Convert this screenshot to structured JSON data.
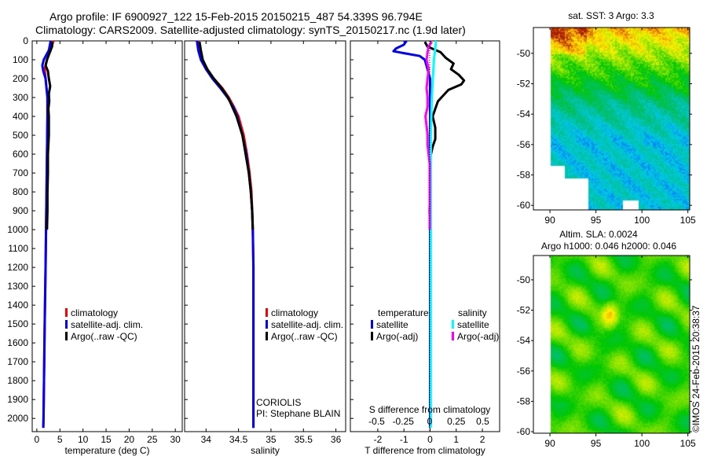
{
  "title": {
    "line1": "Argo profile: IF 6900927_122 15-Feb-2015 20150215_487 54.339S 96.794E",
    "line2": "Climatology: CARS2009. Satellite-adjusted climatology: synTS_20150217.nc (1.9d later)"
  },
  "credit": "©IMOS 24-Feb-2015 20:38:37",
  "chart_data": [
    {
      "type": "line",
      "id": "temperature",
      "xlabel": "temperature (deg C)",
      "ylabel": "",
      "xlim": [
        -1,
        31.5
      ],
      "ylim": [
        2070,
        0
      ],
      "xticks": [
        0,
        5,
        10,
        15,
        20,
        25,
        30
      ],
      "yticks": [
        0,
        100,
        200,
        300,
        400,
        500,
        600,
        700,
        800,
        900,
        1000,
        1100,
        1200,
        1300,
        1400,
        1500,
        1600,
        1700,
        1800,
        1900,
        2000
      ],
      "legend": [
        "climatology",
        "satellite-adj. clim.",
        "Argo(..raw -QC)"
      ],
      "series": [
        {
          "name": "climatology",
          "color": "#ff0000",
          "depth": [
            0,
            50,
            100,
            150,
            200,
            300,
            400,
            600,
            800,
            1000,
            1200,
            1500,
            1800,
            2000,
            2050
          ],
          "values": [
            3.6,
            3.0,
            2.2,
            1.7,
            1.9,
            2.3,
            2.3,
            2.2,
            2.1,
            2.0,
            1.9,
            1.7,
            1.55,
            1.45,
            1.4
          ]
        },
        {
          "name": "satellite-adj. clim.",
          "color": "#0000ff",
          "depth": [
            0,
            50,
            100,
            130,
            160,
            200,
            300,
            400,
            600,
            800,
            1000,
            1200,
            1500,
            1800,
            2000,
            2050
          ],
          "values": [
            3.0,
            2.6,
            1.5,
            1.2,
            1.4,
            1.9,
            2.3,
            2.3,
            2.2,
            2.1,
            2.0,
            1.9,
            1.7,
            1.55,
            1.45,
            1.4
          ]
        },
        {
          "name": "Argo(..raw -QC)",
          "color": "#000000",
          "depth": [
            5,
            30,
            60,
            100,
            130,
            160,
            200,
            240,
            280,
            320,
            360,
            400,
            500,
            600,
            700,
            800,
            900,
            1000
          ],
          "values": [
            3.3,
            3.3,
            2.8,
            2.2,
            1.9,
            2.4,
            2.6,
            2.9,
            2.6,
            2.7,
            2.5,
            2.6,
            2.6,
            2.4,
            2.4,
            2.3,
            2.3,
            2.2
          ]
        }
      ],
      "annotations": []
    },
    {
      "type": "line",
      "id": "salinity",
      "xlabel": "salinity",
      "ylabel": "",
      "xlim": [
        33.67,
        36.15
      ],
      "ylim": [
        2070,
        0
      ],
      "xticks": [
        34,
        34.5,
        35,
        35.5,
        36
      ],
      "legend": [
        "climatology",
        "satellite-adj. clim.",
        "Argo(..raw -QC)"
      ],
      "series": [
        {
          "name": "climatology",
          "color": "#ff0000",
          "depth": [
            0,
            50,
            100,
            150,
            200,
            250,
            300,
            350,
            400,
            500,
            600,
            700,
            800,
            900,
            1000,
            1200,
            1500,
            2000,
            2050
          ],
          "values": [
            33.88,
            33.9,
            33.93,
            34.0,
            34.12,
            34.25,
            34.35,
            34.43,
            34.5,
            34.58,
            34.63,
            34.67,
            34.7,
            34.71,
            34.72,
            34.73,
            34.73,
            34.73,
            34.73
          ]
        },
        {
          "name": "satellite-adj. clim.",
          "color": "#0000ff",
          "depth": [
            0,
            50,
            100,
            150,
            200,
            250,
            300,
            350,
            400,
            500,
            600,
            700,
            800,
            900,
            1000,
            1200,
            1500,
            2000,
            2050
          ],
          "values": [
            33.86,
            33.88,
            33.92,
            34.0,
            34.1,
            34.22,
            34.33,
            34.42,
            34.48,
            34.56,
            34.62,
            34.66,
            34.69,
            34.71,
            34.72,
            34.73,
            34.73,
            34.73,
            34.73
          ]
        },
        {
          "name": "Argo(..raw -QC)",
          "color": "#000000",
          "depth": [
            5,
            50,
            100,
            150,
            200,
            250,
            300,
            400,
            500,
            600,
            700,
            800,
            900,
            1000
          ],
          "values": [
            33.9,
            33.92,
            33.95,
            34.02,
            34.12,
            34.24,
            34.34,
            34.47,
            34.56,
            34.61,
            34.66,
            34.69,
            34.71,
            34.72
          ]
        }
      ],
      "annotations": [
        "CORIOLIS",
        "PI: Stephane BLAIN"
      ]
    },
    {
      "type": "line",
      "id": "difference",
      "xlabel": "T difference from climatology",
      "xlabel_top": "S difference from climatology",
      "xlim": [
        -3.05,
        2.66
      ],
      "slim": [
        -0.5,
        0.5
      ],
      "ylim": [
        2070,
        0
      ],
      "xticks": [
        -2,
        -1,
        0,
        1,
        2
      ],
      "sticks": [
        "-0.5",
        "-0.25",
        "0",
        "0.25",
        "0.5"
      ],
      "sticks_values": [
        -0.5,
        -0.25,
        0,
        0.25,
        0.5
      ],
      "legend_headers": [
        "temperature",
        "salinity"
      ],
      "legend": [
        "satellite",
        "Argo(-adj)",
        "satellite",
        "Argo(-adj)"
      ],
      "series": [
        {
          "name": "T satellite",
          "kind": "T",
          "color": "#0000ff",
          "depth": [
            0,
            20,
            40,
            55,
            65,
            80,
            100,
            150,
            200,
            300,
            500,
            700,
            1000,
            1500,
            2000,
            2050
          ],
          "values": [
            -0.9,
            -1.0,
            -1.3,
            -1.4,
            -1.0,
            -0.4,
            -0.2,
            -0.1,
            0,
            0,
            0,
            0,
            0,
            0,
            0,
            0
          ]
        },
        {
          "name": "T Argo(-adj)",
          "kind": "T",
          "color": "#000000",
          "depth": [
            5,
            30,
            60,
            90,
            120,
            150,
            180,
            210,
            230,
            260,
            290,
            320,
            360,
            400,
            460,
            520,
            560,
            620,
            700,
            800,
            900,
            1000
          ],
          "values": [
            -0.2,
            -0.1,
            0.4,
            0.6,
            0.9,
            0.8,
            1.1,
            1.3,
            1.2,
            0.7,
            0.5,
            0.3,
            0.2,
            0.1,
            0.2,
            0.2,
            0.1,
            0.0,
            0.0,
            0.0,
            -0.02,
            0
          ]
        },
        {
          "name": "S satellite",
          "kind": "S",
          "color": "#00ffff",
          "depth": [
            0,
            50,
            100,
            200,
            300,
            500,
            800,
            1000,
            1500,
            2000,
            2050
          ],
          "values": [
            0.06,
            0.05,
            0.04,
            0.03,
            0.02,
            0.01,
            0.01,
            0.01,
            0.01,
            0.01,
            0.01
          ]
        },
        {
          "name": "S Argo(-adj)",
          "kind": "S",
          "color": "#ff00ff",
          "depth": [
            5,
            30,
            60,
            100,
            150,
            200,
            250,
            300,
            350,
            400,
            450,
            500,
            550,
            600,
            650,
            700,
            800,
            900,
            1000
          ],
          "values": [
            0.02,
            -0.01,
            -0.02,
            -0.03,
            -0.01,
            -0.02,
            -0.03,
            -0.02,
            -0.02,
            -0.04,
            -0.03,
            -0.02,
            -0.02,
            -0.01,
            0,
            0,
            0,
            0,
            0
          ]
        }
      ],
      "annotations": []
    },
    {
      "type": "heatmap",
      "id": "sst_map",
      "title": "sat. SST: 3 Argo: 3.3",
      "xlim": [
        88.2,
        105.2
      ],
      "ylim": [
        -60.3,
        -48.3
      ],
      "xticks": [
        90,
        95,
        100,
        105
      ],
      "yticks": [
        -50,
        -52,
        -54,
        -56,
        -58,
        -60
      ]
    },
    {
      "type": "heatmap",
      "id": "sla_map",
      "title": "Altim. SLA: 0.0024",
      "subtitle": "Argo h1000: 0.046 h2000: 0.046",
      "xlim": [
        88.2,
        105.2
      ],
      "ylim": [
        -60.1,
        -48.4
      ],
      "xticks": [
        90,
        95,
        100,
        105
      ],
      "yticks": [
        -50,
        -52,
        -54,
        -56,
        -58,
        -60
      ]
    }
  ]
}
